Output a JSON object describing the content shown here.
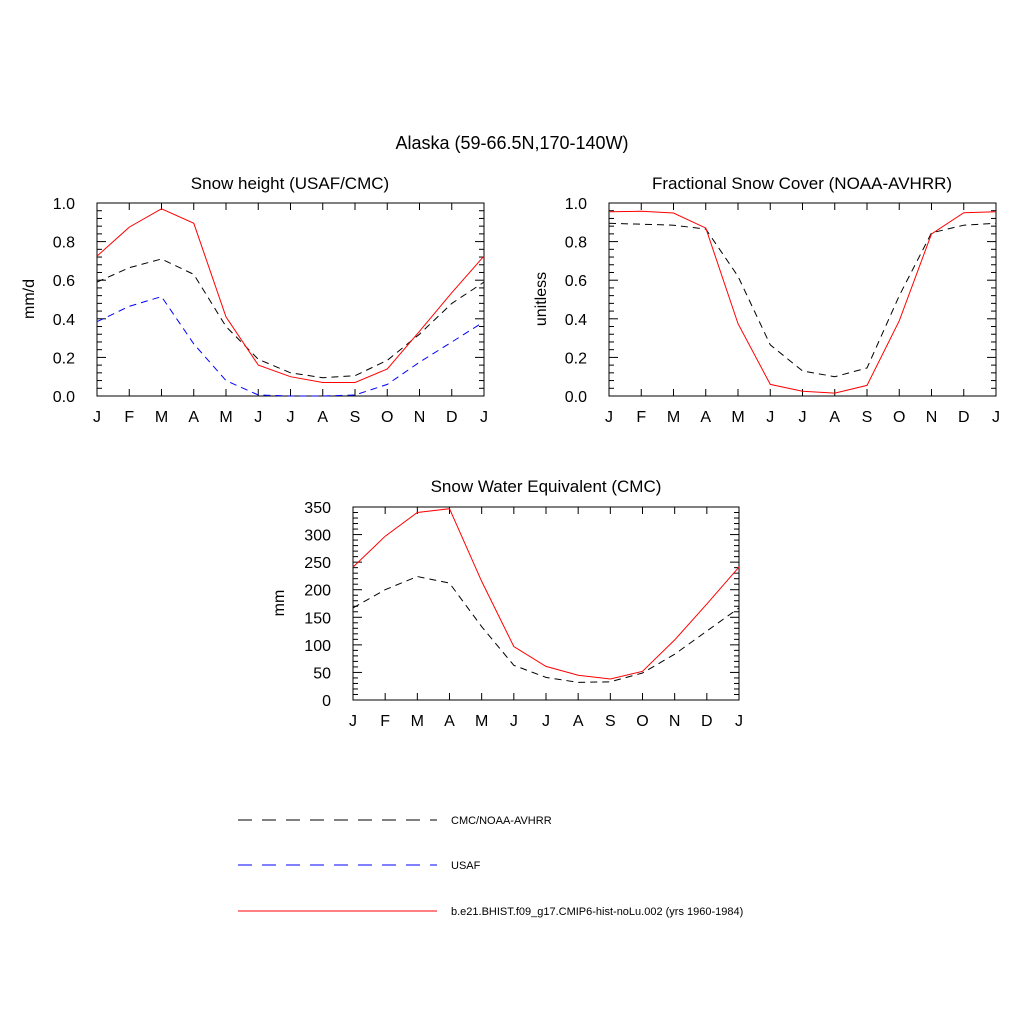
{
  "figure": {
    "title": "Alaska (59-66.5N,170-140W)"
  },
  "months": [
    "J",
    "F",
    "M",
    "A",
    "M",
    "J",
    "J",
    "A",
    "S",
    "O",
    "N",
    "D",
    "J"
  ],
  "legend": [
    {
      "label": "CMC/NOAA-AVHRR",
      "color": "#000000",
      "dash": "dashed"
    },
    {
      "label": "USAF",
      "color": "#0000ff",
      "dash": "dashed"
    },
    {
      "label": "b.e21.BHIST.f09_g17.CMIP6-hist-noLu.002 (yrs 1960-1984)",
      "color": "#ff0000",
      "dash": "solid"
    }
  ],
  "chart_data": [
    {
      "type": "line",
      "title": "Snow height (USAF/CMC)",
      "ylabel": "mm/d",
      "xlabel": "",
      "ylim": [
        0,
        1.0
      ],
      "yticks": [
        "0.0",
        "0.2",
        "0.4",
        "0.6",
        "0.8",
        "1.0"
      ],
      "categories": [
        "J",
        "F",
        "M",
        "A",
        "M",
        "J",
        "J",
        "A",
        "S",
        "O",
        "N",
        "D",
        "J"
      ],
      "series": [
        {
          "name": "CMC/NOAA-AVHRR",
          "color": "#000000",
          "dash": "dashed",
          "values": [
            0.59,
            0.665,
            0.71,
            0.63,
            0.36,
            0.19,
            0.12,
            0.095,
            0.105,
            0.185,
            0.32,
            0.48,
            0.59
          ]
        },
        {
          "name": "USAF",
          "color": "#0000ff",
          "dash": "dashed",
          "values": [
            0.385,
            0.465,
            0.515,
            0.27,
            0.08,
            0.005,
            0.0,
            0.0,
            0.005,
            0.06,
            0.175,
            0.28,
            0.385
          ]
        },
        {
          "name": "b.e21.BHIST.f09_g17.CMIP6-hist-noLu.002 (yrs 1960-1984)",
          "color": "#ff0000",
          "dash": "solid",
          "values": [
            0.725,
            0.875,
            0.97,
            0.895,
            0.41,
            0.16,
            0.1,
            0.07,
            0.07,
            0.14,
            0.335,
            0.535,
            0.725
          ]
        }
      ]
    },
    {
      "type": "line",
      "title": "Fractional Snow Cover (NOAA-AVHRR)",
      "ylabel": "unitless",
      "xlabel": "",
      "ylim": [
        0,
        1.0
      ],
      "yticks": [
        "0.0",
        "0.2",
        "0.4",
        "0.6",
        "0.8",
        "1.0"
      ],
      "categories": [
        "J",
        "F",
        "M",
        "A",
        "M",
        "J",
        "J",
        "A",
        "S",
        "O",
        "N",
        "D",
        "J"
      ],
      "series": [
        {
          "name": "CMC/NOAA-AVHRR",
          "color": "#000000",
          "dash": "dashed",
          "values": [
            0.895,
            0.89,
            0.885,
            0.865,
            0.62,
            0.265,
            0.13,
            0.1,
            0.145,
            0.52,
            0.845,
            0.885,
            0.895
          ]
        },
        {
          "name": "b.e21.BHIST.f09_g17.CMIP6-hist-noLu.002 (yrs 1960-1984)",
          "color": "#ff0000",
          "dash": "solid",
          "values": [
            0.955,
            0.957,
            0.948,
            0.87,
            0.375,
            0.06,
            0.025,
            0.015,
            0.055,
            0.39,
            0.84,
            0.95,
            0.955
          ]
        }
      ]
    },
    {
      "type": "line",
      "title": "Snow Water Equivalent (CMC)",
      "ylabel": "mm",
      "xlabel": "",
      "ylim": [
        0,
        350
      ],
      "yticks": [
        "0",
        "50",
        "100",
        "150",
        "200",
        "250",
        "300",
        "350"
      ],
      "categories": [
        "J",
        "F",
        "M",
        "A",
        "M",
        "J",
        "J",
        "A",
        "S",
        "O",
        "N",
        "D",
        "J"
      ],
      "series": [
        {
          "name": "CMC/NOAA-AVHRR",
          "color": "#000000",
          "dash": "dashed",
          "values": [
            167,
            200,
            224,
            212,
            133,
            63,
            41,
            32,
            33,
            49,
            83,
            125,
            167
          ]
        },
        {
          "name": "b.e21.BHIST.f09_g17.CMIP6-hist-noLu.002 (yrs 1960-1984)",
          "color": "#ff0000",
          "dash": "solid",
          "values": [
            241,
            297,
            340,
            347,
            215,
            97,
            61,
            45,
            38,
            52,
            109,
            174,
            241
          ]
        }
      ]
    }
  ]
}
